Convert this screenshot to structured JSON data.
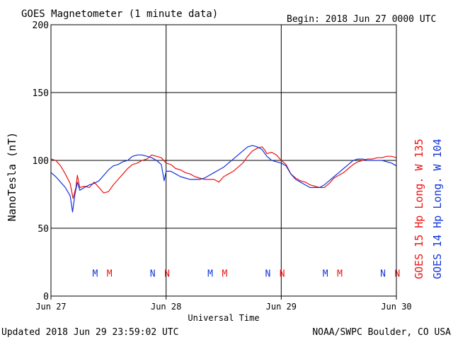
{
  "header": {
    "title": "GOES Magnetometer (1 minute data)",
    "begin": "Begin:  2018 Jun 27 0000 UTC"
  },
  "footer": {
    "updated": "Updated 2018 Jun 29 23:59:02 UTC",
    "credit": "NOAA/SWPC Boulder, CO USA"
  },
  "chart_data": {
    "type": "line",
    "title": "GOES Magnetometer (1 minute data)",
    "xlabel": "Universal Time",
    "ylabel": "NanoTesla (nT)",
    "ylim": [
      0,
      200
    ],
    "yticks": [
      0,
      50,
      100,
      150,
      200
    ],
    "xlim": [
      0,
      72
    ],
    "xunit": "hours since 2018 Jun 27 0000 UTC",
    "xticks": [
      {
        "x": 0,
        "label": "Jun 27"
      },
      {
        "x": 24,
        "label": "Jun 28"
      },
      {
        "x": 48,
        "label": "Jun 29"
      },
      {
        "x": 72,
        "label": "Jun 30"
      }
    ],
    "grid": true,
    "series": [
      {
        "name": "GOES 15 Hp  Long. W 135",
        "color": "#ee1111",
        "values": [
          [
            0,
            101
          ],
          [
            1,
            100
          ],
          [
            2,
            96
          ],
          [
            3,
            90
          ],
          [
            4,
            83
          ],
          [
            4.6,
            72
          ],
          [
            5.2,
            80
          ],
          [
            5.5,
            89
          ],
          [
            6,
            80
          ],
          [
            7,
            81
          ],
          [
            8,
            80
          ],
          [
            9,
            84
          ],
          [
            10,
            80
          ],
          [
            11,
            76
          ],
          [
            12,
            77
          ],
          [
            13,
            82
          ],
          [
            14,
            86
          ],
          [
            15,
            90
          ],
          [
            16,
            94
          ],
          [
            17,
            97
          ],
          [
            18,
            98
          ],
          [
            19,
            100
          ],
          [
            20,
            101
          ],
          [
            21,
            104
          ],
          [
            22,
            103
          ],
          [
            23,
            102
          ],
          [
            24,
            98
          ],
          [
            25,
            97
          ],
          [
            26,
            94
          ],
          [
            27,
            93
          ],
          [
            28,
            91
          ],
          [
            29,
            90
          ],
          [
            30,
            88
          ],
          [
            31,
            87
          ],
          [
            32,
            86
          ],
          [
            33,
            86
          ],
          [
            34,
            86
          ],
          [
            35,
            84
          ],
          [
            36,
            88
          ],
          [
            37,
            90
          ],
          [
            38,
            92
          ],
          [
            39,
            95
          ],
          [
            40,
            98
          ],
          [
            41,
            103
          ],
          [
            42,
            107
          ],
          [
            43,
            109
          ],
          [
            44,
            110
          ],
          [
            44.5,
            108
          ],
          [
            45,
            105
          ],
          [
            46,
            106
          ],
          [
            47,
            104
          ],
          [
            48,
            100
          ],
          [
            49,
            97
          ],
          [
            50,
            90
          ],
          [
            51,
            87
          ],
          [
            52,
            85
          ],
          [
            53,
            84
          ],
          [
            54,
            82
          ],
          [
            55,
            81
          ],
          [
            56,
            80
          ],
          [
            57,
            80
          ],
          [
            58,
            83
          ],
          [
            59,
            87
          ],
          [
            60,
            89
          ],
          [
            61,
            91
          ],
          [
            62,
            94
          ],
          [
            63,
            97
          ],
          [
            64,
            99
          ],
          [
            65,
            100
          ],
          [
            66,
            101
          ],
          [
            67,
            101
          ],
          [
            68,
            102
          ],
          [
            69,
            102
          ],
          [
            70,
            103
          ],
          [
            71,
            103
          ],
          [
            72,
            102
          ]
        ]
      },
      {
        "name": "GOES 14 Hp  Long. W 104",
        "color": "#1133dd",
        "values": [
          [
            0,
            91
          ],
          [
            1,
            88
          ],
          [
            2,
            84
          ],
          [
            3,
            80
          ],
          [
            4,
            74
          ],
          [
            4.5,
            62
          ],
          [
            5,
            75
          ],
          [
            5.5,
            84
          ],
          [
            6,
            78
          ],
          [
            7,
            80
          ],
          [
            8,
            82
          ],
          [
            9,
            83
          ],
          [
            10,
            85
          ],
          [
            11,
            89
          ],
          [
            12,
            93
          ],
          [
            13,
            96
          ],
          [
            14,
            97
          ],
          [
            15,
            99
          ],
          [
            16,
            100
          ],
          [
            17,
            103
          ],
          [
            18,
            104
          ],
          [
            19,
            104
          ],
          [
            20,
            103
          ],
          [
            21,
            102
          ],
          [
            22,
            100
          ],
          [
            23,
            97
          ],
          [
            23.6,
            85
          ],
          [
            24,
            92
          ],
          [
            25,
            92
          ],
          [
            26,
            90
          ],
          [
            27,
            88
          ],
          [
            28,
            87
          ],
          [
            29,
            86
          ],
          [
            30,
            86
          ],
          [
            31,
            86
          ],
          [
            32,
            87
          ],
          [
            33,
            89
          ],
          [
            34,
            91
          ],
          [
            35,
            93
          ],
          [
            36,
            95
          ],
          [
            37,
            98
          ],
          [
            38,
            101
          ],
          [
            39,
            104
          ],
          [
            40,
            107
          ],
          [
            41,
            110
          ],
          [
            42,
            111
          ],
          [
            43,
            110
          ],
          [
            44,
            108
          ],
          [
            45,
            103
          ],
          [
            46,
            100
          ],
          [
            47,
            99
          ],
          [
            48,
            98
          ],
          [
            49,
            96
          ],
          [
            50,
            90
          ],
          [
            51,
            86
          ],
          [
            52,
            84
          ],
          [
            53,
            82
          ],
          [
            54,
            80
          ],
          [
            55,
            80
          ],
          [
            56,
            80
          ],
          [
            57,
            82
          ],
          [
            58,
            85
          ],
          [
            59,
            88
          ],
          [
            60,
            91
          ],
          [
            61,
            94
          ],
          [
            62,
            97
          ],
          [
            63,
            100
          ],
          [
            64,
            101
          ],
          [
            65,
            101
          ],
          [
            66,
            100
          ],
          [
            67,
            100
          ],
          [
            68,
            100
          ],
          [
            69,
            100
          ],
          [
            70,
            99
          ],
          [
            71,
            98
          ],
          [
            72,
            96
          ]
        ]
      }
    ],
    "markers": [
      {
        "label": "M",
        "x": 9.2,
        "color": "#1133dd"
      },
      {
        "label": "M",
        "x": 12.2,
        "color": "#ee1111"
      },
      {
        "label": "N",
        "x": 21.2,
        "color": "#1133dd"
      },
      {
        "label": "N",
        "x": 24.2,
        "color": "#ee1111"
      },
      {
        "label": "M",
        "x": 33.2,
        "color": "#1133dd"
      },
      {
        "label": "M",
        "x": 36.2,
        "color": "#ee1111"
      },
      {
        "label": "N",
        "x": 45.2,
        "color": "#1133dd"
      },
      {
        "label": "N",
        "x": 48.2,
        "color": "#ee1111"
      },
      {
        "label": "M",
        "x": 57.2,
        "color": "#1133dd"
      },
      {
        "label": "M",
        "x": 60.2,
        "color": "#ee1111"
      },
      {
        "label": "N",
        "x": 69.2,
        "color": "#1133dd"
      },
      {
        "label": "N",
        "x": 72.2,
        "color": "#ee1111"
      }
    ],
    "marker_level": 17,
    "legend_placement": "right-vertical"
  }
}
